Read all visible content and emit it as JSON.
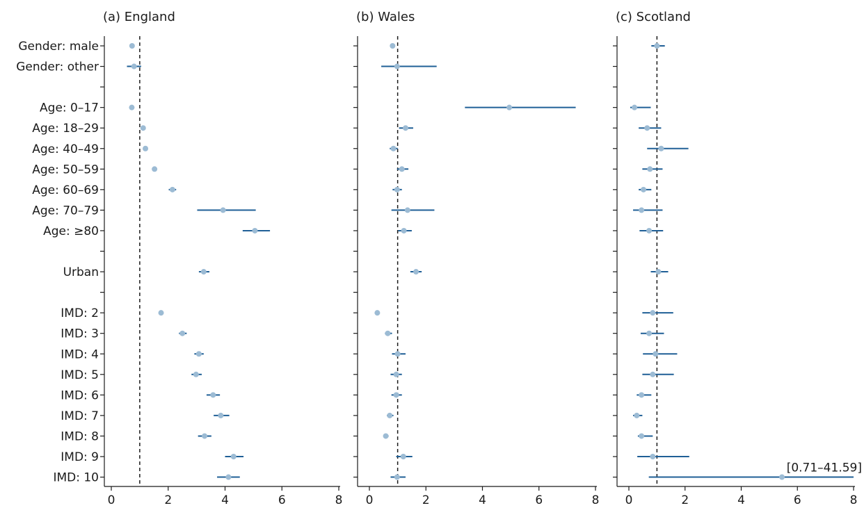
{
  "chart_data": {
    "type": "forest",
    "row_labels": [
      "Gender: male",
      "Gender: other",
      "",
      "Age: 0–17",
      "Age: 18–29",
      "Age: 40–49",
      "Age: 50–59",
      "Age: 60–69",
      "Age: 70–79",
      "Age: ≥80",
      "",
      "Urban",
      "",
      "IMD: 2",
      "IMD: 3",
      "IMD: 4",
      "IMD: 5",
      "IMD: 6",
      "IMD: 7",
      "IMD: 8",
      "IMD: 9",
      "IMD: 10"
    ],
    "xlim": [
      0,
      8
    ],
    "xticks": [
      "0",
      "2",
      "4",
      "6",
      "8"
    ],
    "reference_line": 1,
    "colors": {
      "point": "#9cbbd4",
      "ci": "#1f5f96"
    },
    "panels": [
      {
        "title": "(a) England",
        "points": [
          [
            0.73,
            0.7,
            0.76
          ],
          [
            0.8,
            0.55,
            1.05
          ],
          null,
          [
            0.72,
            0.68,
            0.76
          ],
          [
            1.12,
            1.06,
            1.18
          ],
          [
            1.2,
            1.13,
            1.27
          ],
          [
            1.52,
            1.45,
            1.59
          ],
          [
            2.15,
            2.02,
            2.28
          ],
          [
            3.93,
            3.02,
            5.08
          ],
          [
            5.05,
            4.62,
            5.58
          ],
          null,
          [
            3.25,
            3.08,
            3.45
          ],
          null,
          [
            1.75,
            1.68,
            1.82
          ],
          [
            2.5,
            2.38,
            2.65
          ],
          [
            3.08,
            2.92,
            3.25
          ],
          [
            2.98,
            2.82,
            3.18
          ],
          [
            3.58,
            3.35,
            3.82
          ],
          [
            3.85,
            3.6,
            4.15
          ],
          [
            3.28,
            3.05,
            3.52
          ],
          [
            4.3,
            4.0,
            4.65
          ],
          [
            4.12,
            3.72,
            4.52
          ]
        ]
      },
      {
        "title": "(b) Wales",
        "points": [
          [
            0.82,
            0.78,
            0.86
          ],
          [
            0.98,
            0.42,
            2.38
          ],
          null,
          [
            4.95,
            3.38,
            7.3
          ],
          [
            1.28,
            1.05,
            1.55
          ],
          [
            0.85,
            0.72,
            1.0
          ],
          [
            1.15,
            0.98,
            1.38
          ],
          [
            0.98,
            0.82,
            1.15
          ],
          [
            1.35,
            0.78,
            2.3
          ],
          [
            1.22,
            1.02,
            1.5
          ],
          null,
          [
            1.65,
            1.45,
            1.85
          ],
          null,
          [
            0.28,
            0.25,
            0.31
          ],
          [
            0.65,
            0.55,
            0.8
          ],
          [
            1.0,
            0.8,
            1.28
          ],
          [
            0.95,
            0.75,
            1.15
          ],
          [
            0.95,
            0.78,
            1.15
          ],
          [
            0.72,
            0.62,
            0.85
          ],
          [
            0.58,
            0.5,
            0.68
          ],
          [
            1.2,
            0.95,
            1.52
          ],
          [
            0.98,
            0.75,
            1.28
          ]
        ]
      },
      {
        "title": "(c) Scotland",
        "points": [
          [
            1.0,
            0.8,
            1.28
          ],
          null,
          null,
          [
            0.2,
            0.05,
            0.78
          ],
          [
            0.65,
            0.35,
            1.15
          ],
          [
            1.15,
            0.65,
            2.12
          ],
          [
            0.75,
            0.48,
            1.2
          ],
          [
            0.52,
            0.35,
            0.8
          ],
          [
            0.45,
            0.15,
            1.2
          ],
          [
            0.72,
            0.38,
            1.22
          ],
          null,
          [
            1.05,
            0.78,
            1.4
          ],
          null,
          [
            0.85,
            0.48,
            1.58
          ],
          [
            0.72,
            0.42,
            1.25
          ],
          [
            0.95,
            0.5,
            1.72
          ],
          [
            0.85,
            0.48,
            1.6
          ],
          [
            0.45,
            0.28,
            0.8
          ],
          [
            0.28,
            0.15,
            0.48
          ],
          [
            0.45,
            0.32,
            0.85
          ],
          [
            0.85,
            0.3,
            2.15
          ],
          [
            5.45,
            0.71,
            41.59
          ]
        ],
        "annotation": {
          "row": 21,
          "text": "[0.71–41.59]"
        }
      }
    ]
  }
}
